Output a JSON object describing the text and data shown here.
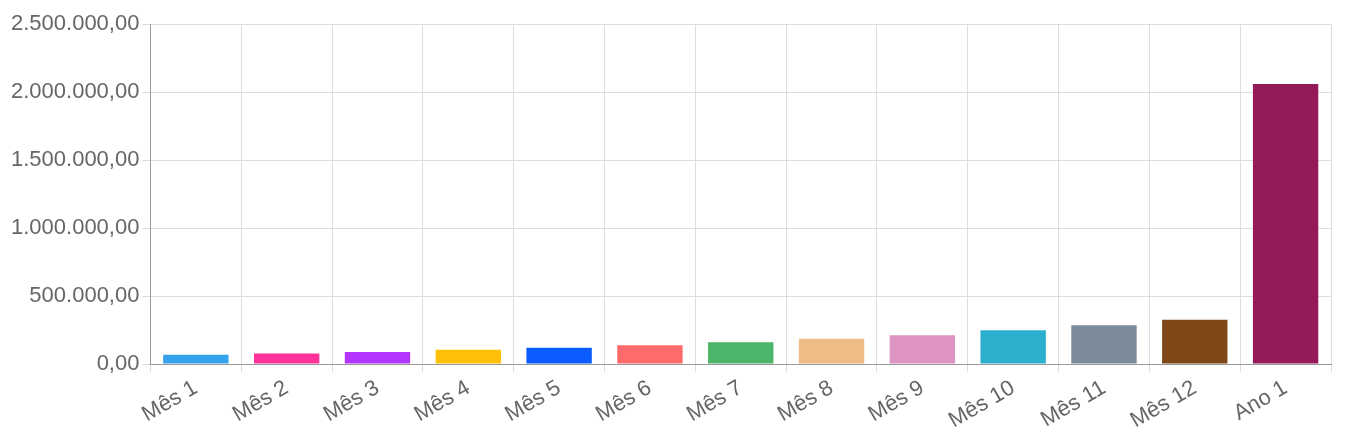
{
  "chart_data": {
    "type": "bar",
    "categories": [
      "Mês 1",
      "Mês 2",
      "Mês 3",
      "Mês 4",
      "Mês 5",
      "Mês 6",
      "Mês 7",
      "Mês 8",
      "Mês 9",
      "Mês 10",
      "Mês 11",
      "Mês 12",
      "Ano 1"
    ],
    "values": [
      69000,
      78000,
      88000,
      105000,
      120000,
      139000,
      161000,
      187000,
      212000,
      249000,
      285000,
      326000,
      2060000
    ],
    "colors": [
      "#36a2eb",
      "#ff3399",
      "#b236ff",
      "#ffc107",
      "#0b5cff",
      "#ff6b6b",
      "#4db56a",
      "#f0bc86",
      "#de94c0",
      "#2ab0cc",
      "#7b8b9c",
      "#7f4819",
      "#951a58"
    ],
    "ylim": [
      0,
      2500000
    ],
    "yticks": [
      {
        "value": 0,
        "label": "0,00"
      },
      {
        "value": 500000,
        "label": "500.000,00"
      },
      {
        "value": 1000000,
        "label": "1.000.000,00"
      },
      {
        "value": 1500000,
        "label": "1.500.000,00"
      },
      {
        "value": 2000000,
        "label": "2.000.000,00"
      },
      {
        "value": 2500000,
        "label": "2.500.000,00"
      }
    ],
    "grid": true
  }
}
